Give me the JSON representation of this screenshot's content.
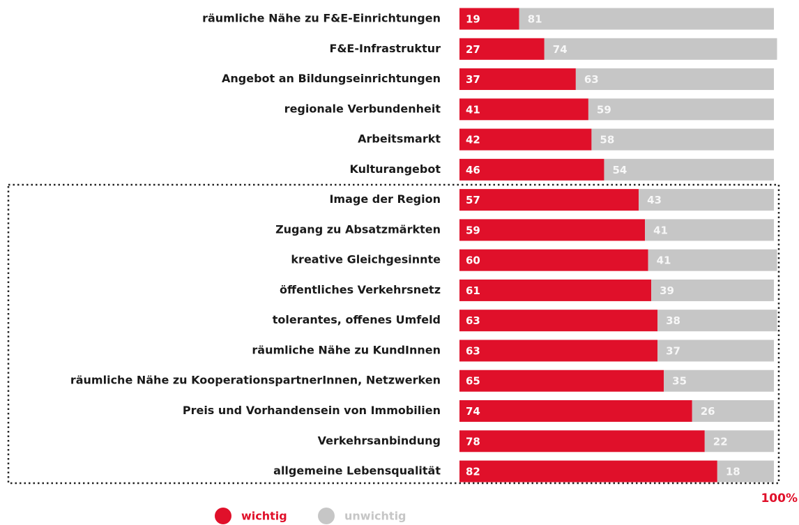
{
  "chart_data": {
    "type": "stacked_bar_horizontal",
    "categories": [
      "räumliche Nähe zu F&E-Einrichtungen",
      "F&E-Infrastruktur",
      "Angebot an Bildungseinrichtungen",
      "regionale Verbundenheit",
      "Arbeitsmarkt",
      "Kulturangebot",
      "Image der Region",
      "Zugang zu Absatzmärkten",
      "kreative Gleichgesinnte",
      "öffentliches Verkehrsnetz",
      "tolerantes, offenes Umfeld",
      "räumliche Nähe zu KundInnen",
      "räumliche Nähe zu KooperationspartnerInnen, Netzwerken",
      "Preis und Vorhandensein von Immobilien",
      "Verkehrsanbindung",
      "allgemeine Lebensqualität"
    ],
    "series": [
      {
        "name": "wichtig",
        "color": "#e0102a",
        "values": [
          19,
          27,
          37,
          41,
          42,
          46,
          57,
          59,
          60,
          61,
          63,
          63,
          65,
          74,
          78,
          82
        ]
      },
      {
        "name": "unwichtig",
        "color": "#c6c6c6",
        "values": [
          81,
          74,
          63,
          59,
          58,
          54,
          43,
          41,
          41,
          39,
          38,
          37,
          35,
          26,
          22,
          18
        ]
      }
    ],
    "xlim": [
      0,
      100
    ],
    "xticks": [
      {
        "value": 100,
        "label": "100%"
      }
    ]
  }
}
